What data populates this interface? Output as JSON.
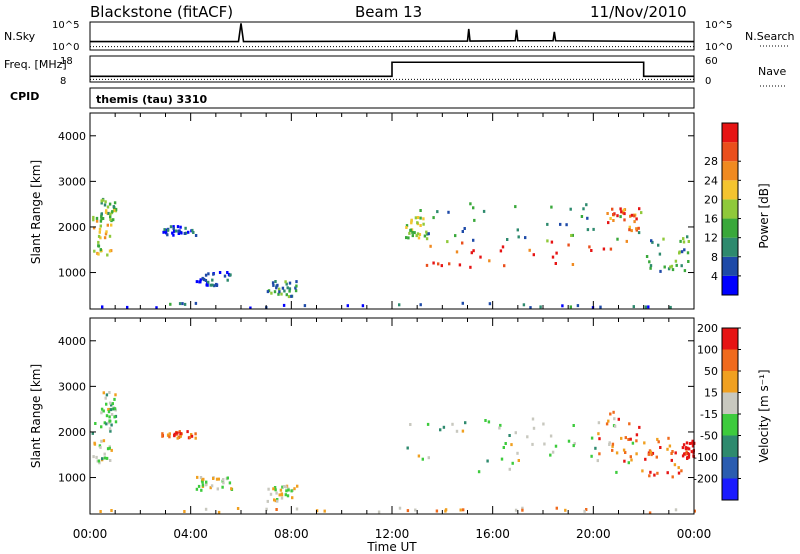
{
  "header": {
    "title": "Blackstone (fitACF)",
    "beam": "Beam 13",
    "date": "11/Nov/2010"
  },
  "chart_data": [
    {
      "type": "line",
      "panel": "noise",
      "left_label": "N.Sky",
      "right_label": "N.Search",
      "left_ticks": [
        "10^5",
        "10^0"
      ],
      "right_ticks": [
        "10^5",
        "10^0"
      ],
      "series": [
        {
          "style": "solid",
          "x": [
            0,
            5.9,
            6.0,
            6.1,
            15.0,
            15.05,
            15.1,
            16.9,
            16.95,
            17.0,
            18.4,
            18.45,
            18.5,
            24
          ],
          "y": [
            0.3,
            0.3,
            0.95,
            0.3,
            0.32,
            0.75,
            0.32,
            0.33,
            0.72,
            0.33,
            0.33,
            0.65,
            0.33,
            0.3
          ]
        },
        {
          "style": "dotted",
          "x": [
            0,
            24
          ],
          "y": [
            0.12,
            0.12
          ]
        }
      ],
      "xlim": [
        0,
        24
      ]
    },
    {
      "type": "line",
      "panel": "frequency",
      "left_label": "Freq. [MHz]",
      "right_label": "Nave",
      "left_ticks": [
        "18",
        "8"
      ],
      "right_ticks": [
        "60",
        "0"
      ],
      "series": [
        {
          "style": "solid",
          "x": [
            0,
            12,
            12,
            22,
            22,
            24
          ],
          "y": [
            10.2,
            10.2,
            15.6,
            15.6,
            10.2,
            10.2
          ]
        },
        {
          "style": "dotted",
          "x": [
            0,
            24
          ],
          "y": [
            9.0,
            9.0
          ]
        }
      ],
      "ylim": [
        8,
        18
      ],
      "xlim": [
        0,
        24
      ]
    },
    {
      "type": "label",
      "panel": "cpid",
      "left_label": "CPID",
      "mode": "themis (tau) 3310"
    },
    {
      "type": "heatmap",
      "panel": "power",
      "ylabel": "Slant Range [km]",
      "yticks": [
        1000,
        2000,
        3000,
        4000
      ],
      "ylim": [
        200,
        4500
      ],
      "xlim": [
        0,
        24
      ],
      "colorbar": {
        "label": "Power [dB]",
        "ticks": [
          4,
          8,
          12,
          16,
          20,
          24,
          28
        ],
        "colors": [
          "#0000ff",
          "#1e4aa8",
          "#2e8a6e",
          "#39a83a",
          "#8fc93a",
          "#f4c430",
          "#f08a20",
          "#ea4f1c",
          "#e61414"
        ]
      },
      "regions": [
        {
          "t": [
            0.05,
            0.9
          ],
          "r": [
            1300,
            2200
          ],
          "level": 0.55
        },
        {
          "t": [
            0.4,
            1.0
          ],
          "r": [
            2100,
            2600
          ],
          "level": 0.45
        },
        {
          "t": [
            2.8,
            4.2
          ],
          "r": [
            1800,
            2000
          ],
          "level": 0.15
        },
        {
          "t": [
            4.2,
            5.6
          ],
          "r": [
            700,
            1000
          ],
          "level": 0.15
        },
        {
          "t": [
            7.0,
            8.2
          ],
          "r": [
            450,
            800
          ],
          "level": 0.3
        },
        {
          "t": [
            12.5,
            13.4
          ],
          "r": [
            1700,
            2200
          ],
          "level": 0.5
        },
        {
          "t": [
            13.2,
            21.9
          ],
          "r": [
            1100,
            1700
          ],
          "level": 0.85
        },
        {
          "t": [
            13.0,
            22.0
          ],
          "r": [
            1600,
            2500
          ],
          "level": 0.3
        },
        {
          "t": [
            21.9,
            23.8
          ],
          "r": [
            1000,
            1800
          ],
          "level": 0.35
        },
        {
          "t": [
            20.5,
            21.8
          ],
          "r": [
            1900,
            2400
          ],
          "level": 0.8
        },
        {
          "t": [
            0.0,
            24.0
          ],
          "r": [
            210,
            320
          ],
          "level": 0.2
        }
      ]
    },
    {
      "type": "heatmap",
      "panel": "velocity",
      "ylabel": "Slant Range [km]",
      "xlabel": "Time UT",
      "yticks": [
        1000,
        2000,
        3000,
        4000
      ],
      "ylim": [
        200,
        4500
      ],
      "xlim": [
        0,
        24
      ],
      "xtick_labels": [
        "00:00",
        "04:00",
        "08:00",
        "12:00",
        "16:00",
        "20:00",
        "00:00"
      ],
      "colorbar": {
        "label": "Velocity [m s⁻¹]",
        "ticks": [
          200,
          100,
          50,
          15,
          -15,
          -50,
          -100,
          -200
        ],
        "colors": [
          "#1a1aff",
          "#2a5cb0",
          "#2e8a6e",
          "#3dcb3d",
          "#c8c8bf",
          "#f0a020",
          "#f06a1c",
          "#e61414"
        ]
      },
      "regions": [
        {
          "t": [
            0.05,
            0.9
          ],
          "r": [
            1300,
            2200
          ],
          "level": 0.5
        },
        {
          "t": [
            0.4,
            1.0
          ],
          "r": [
            2200,
            2900
          ],
          "level": 0.5
        },
        {
          "t": [
            2.8,
            4.2
          ],
          "r": [
            1850,
            2000
          ],
          "level": 0.8
        },
        {
          "t": [
            4.2,
            5.6
          ],
          "r": [
            700,
            1000
          ],
          "level": 0.55
        },
        {
          "t": [
            7.0,
            8.2
          ],
          "r": [
            450,
            800
          ],
          "level": 0.55
        },
        {
          "t": [
            12.5,
            21.9
          ],
          "r": [
            1100,
            2300
          ],
          "level": 0.5
        },
        {
          "t": [
            20.0,
            21.8
          ],
          "r": [
            1300,
            2500
          ],
          "level": 0.75
        },
        {
          "t": [
            21.9,
            23.5
          ],
          "r": [
            1000,
            1900
          ],
          "level": 0.8
        },
        {
          "t": [
            23.5,
            24.0
          ],
          "r": [
            1400,
            1800
          ],
          "level": 1.0
        },
        {
          "t": [
            0.0,
            24.0
          ],
          "r": [
            210,
            320
          ],
          "level": 0.7
        }
      ]
    }
  ]
}
